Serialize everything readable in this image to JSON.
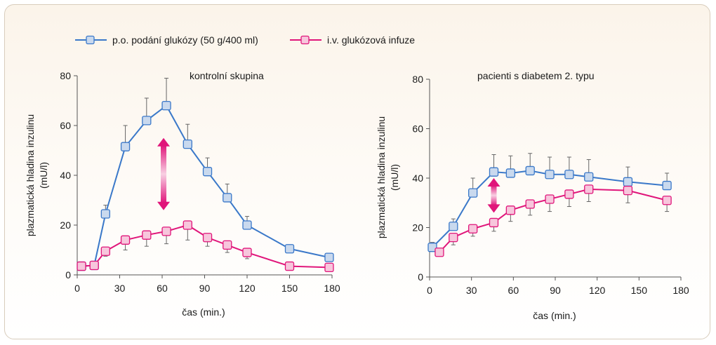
{
  "legend": [
    {
      "label": "p.o. podání glukózy (50 g/400 ml)",
      "color": "#3a78c9",
      "marker_fill": "#c9d9ee"
    },
    {
      "label": "i.v. glukózová infuze",
      "color": "#e0157a",
      "marker_fill": "#f7c6dc"
    }
  ],
  "colors": {
    "arrow": "#e0157a",
    "axis": "#555555"
  },
  "chart_data": [
    {
      "type": "line",
      "title": "kontrolní skupina",
      "xlabel": "čas (min.)",
      "ylabel": "plazmatická hladina inzulinu (mU/l)",
      "ylabel_lines": [
        "plazmatická hladina inzulinu",
        "(mU/l)"
      ],
      "xlim": [
        0,
        180
      ],
      "ylim": [
        0,
        80
      ],
      "xticks": [
        0,
        30,
        60,
        90,
        120,
        150,
        180
      ],
      "yticks": [
        0,
        20,
        40,
        60,
        80
      ],
      "series": [
        {
          "name": "p.o. podání glukózy (50 g/400 ml)",
          "x": [
            3,
            12,
            20,
            34,
            49,
            63,
            78,
            92,
            106,
            120,
            150,
            178
          ],
          "y": [
            3.5,
            3.8,
            24.5,
            51.5,
            62,
            68,
            52.5,
            41.5,
            31,
            20,
            10.5,
            7
          ],
          "err": [
            0,
            0,
            3.5,
            8.5,
            9,
            11,
            8,
            5.5,
            5.5,
            3.5,
            0,
            0
          ]
        },
        {
          "name": "i.v. glukózová infuze",
          "x": [
            3,
            12,
            20,
            34,
            49,
            63,
            78,
            92,
            106,
            120,
            150,
            178
          ],
          "y": [
            3.5,
            3.8,
            9.5,
            14,
            16,
            17.5,
            20,
            15,
            12,
            9,
            3.5,
            3
          ],
          "err": [
            0,
            0,
            2,
            4,
            4.5,
            5,
            6,
            3.5,
            3,
            2.5,
            1.5,
            0
          ]
        }
      ],
      "arrow": {
        "x": 61,
        "y_from": 55,
        "y_to": 26
      }
    },
    {
      "type": "line",
      "title": "pacienti s diabetem 2. typu",
      "xlabel": "čas (min.)",
      "ylabel": "plazmatická hladina inzulinu (mU/l)",
      "ylabel_lines": [
        "plazmatická hladina inzulinu",
        "(mU/l)"
      ],
      "xlim": [
        0,
        180
      ],
      "ylim": [
        0,
        80
      ],
      "xticks": [
        0,
        30,
        60,
        90,
        120,
        150,
        180
      ],
      "yticks": [
        0,
        20,
        40,
        60,
        80
      ],
      "series": [
        {
          "name": "p.o. podání glukózy (50 g/400 ml)",
          "x": [
            2,
            17,
            31,
            46,
            58,
            72,
            86,
            100,
            114,
            142,
            170
          ],
          "y": [
            12,
            20.5,
            34,
            42.5,
            42,
            43,
            41.5,
            41.5,
            40.5,
            38.5,
            37
          ],
          "err": [
            2,
            3,
            6,
            7,
            7,
            7,
            7,
            7,
            7,
            6,
            5
          ]
        },
        {
          "name": "i.v. glukózová infuze",
          "x": [
            7,
            17,
            31,
            46,
            58,
            72,
            86,
            100,
            114,
            142,
            170
          ],
          "y": [
            10,
            16,
            19.5,
            22,
            27,
            29.5,
            31.5,
            33.5,
            35.5,
            35,
            31
          ],
          "err": [
            0,
            3,
            3,
            3.5,
            4.5,
            4.5,
            5,
            5,
            5,
            5,
            4.5
          ]
        }
      ],
      "arrow": {
        "x": 46,
        "y_from": 40,
        "y_to": 26
      }
    }
  ]
}
